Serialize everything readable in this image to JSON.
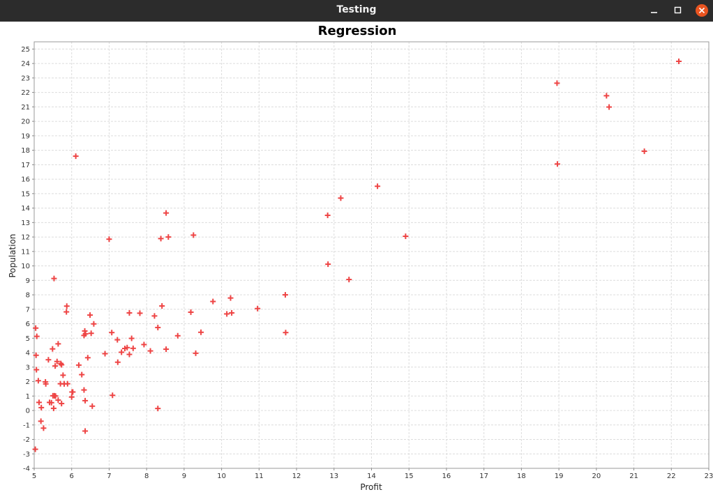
{
  "window": {
    "title": "Testing",
    "controls": [
      "minimize",
      "maximize",
      "close"
    ],
    "close_color": "#e95420"
  },
  "chart_data": {
    "type": "scatter",
    "title": "Regression",
    "xlabel": "Profit",
    "ylabel": "Population",
    "xlim": [
      5,
      23
    ],
    "ylim": [
      -4,
      25.5
    ],
    "xticks": [
      5,
      6,
      7,
      8,
      9,
      10,
      11,
      12,
      13,
      14,
      15,
      16,
      17,
      18,
      19,
      20,
      21,
      22,
      23
    ],
    "yticks": [
      -4,
      -3,
      -2,
      -1,
      0,
      1,
      2,
      3,
      4,
      5,
      6,
      7,
      8,
      9,
      10,
      11,
      12,
      13,
      14,
      15,
      16,
      17,
      18,
      19,
      20,
      21,
      22,
      23,
      24,
      25
    ],
    "grid": true,
    "marker": "plus",
    "marker_color": "#ee4444",
    "points": [
      [
        6.11,
        17.59
      ],
      [
        5.53,
        9.13
      ],
      [
        8.52,
        13.66
      ],
      [
        7.0,
        11.85
      ],
      [
        5.86,
        6.82
      ],
      [
        8.38,
        11.89
      ],
      [
        7.48,
        4.35
      ],
      [
        8.58,
        12.0
      ],
      [
        6.49,
        6.6
      ],
      [
        5.05,
        3.82
      ],
      [
        5.71,
        3.25
      ],
      [
        14.16,
        15.51
      ],
      [
        5.73,
        3.16
      ],
      [
        8.41,
        7.23
      ],
      [
        5.64,
        0.72
      ],
      [
        5.38,
        3.51
      ],
      [
        6.37,
        5.3
      ],
      [
        5.13,
        0.56
      ],
      [
        6.43,
        3.65
      ],
      [
        7.07,
        5.39
      ],
      [
        6.19,
        3.14
      ],
      [
        20.27,
        21.77
      ],
      [
        5.49,
        4.26
      ],
      [
        6.33,
        5.19
      ],
      [
        5.56,
        3.08
      ],
      [
        18.95,
        22.64
      ],
      [
        12.83,
        13.5
      ],
      [
        10.96,
        7.05
      ],
      [
        13.18,
        14.69
      ],
      [
        22.2,
        24.15
      ],
      [
        5.25,
        -1.22
      ],
      [
        6.59,
        5.99
      ],
      [
        9.25,
        12.13
      ],
      [
        5.89,
        1.85
      ],
      [
        8.21,
        6.54
      ],
      [
        7.93,
        4.56
      ],
      [
        8.1,
        4.12
      ],
      [
        5.61,
        3.39
      ],
      [
        12.84,
        10.12
      ],
      [
        6.35,
        5.5
      ],
      [
        5.41,
        0.56
      ],
      [
        6.89,
        3.93
      ],
      [
        11.71,
        5.39
      ],
      [
        5.77,
        2.44
      ],
      [
        7.82,
        6.73
      ],
      [
        7.09,
        1.05
      ],
      [
        5.07,
        5.13
      ],
      [
        5.8,
        1.84
      ],
      [
        11.7,
        8.0
      ],
      [
        5.54,
        1.02
      ],
      [
        7.54,
        6.75
      ],
      [
        5.31,
        1.84
      ],
      [
        7.42,
        4.29
      ],
      [
        7.6,
        4.99
      ],
      [
        6.03,
        1.28
      ],
      [
        6.33,
        1.42
      ],
      [
        6.36,
        -1.42
      ],
      [
        6.27,
        2.48
      ],
      [
        5.64,
        4.61
      ],
      [
        9.31,
        3.96
      ],
      [
        9.45,
        5.41
      ],
      [
        8.83,
        5.17
      ],
      [
        5.18,
        -0.74
      ],
      [
        21.28,
        17.93
      ],
      [
        14.91,
        12.05
      ],
      [
        18.96,
        17.05
      ],
      [
        7.22,
        4.89
      ],
      [
        8.3,
        5.74
      ],
      [
        10.24,
        7.78
      ],
      [
        5.5,
        1.02
      ],
      [
        20.34,
        20.99
      ],
      [
        10.14,
        6.68
      ],
      [
        7.33,
        4.03
      ],
      [
        6.01,
        1.28
      ],
      [
        7.23,
        3.34
      ],
      [
        5.03,
        -2.68
      ],
      [
        6.55,
        0.3
      ],
      [
        7.54,
        3.88
      ],
      [
        5.04,
        5.7
      ],
      [
        10.27,
        6.75
      ],
      [
        5.11,
        2.06
      ],
      [
        5.73,
        0.48
      ],
      [
        5.19,
        0.2
      ],
      [
        6.36,
        0.68
      ],
      [
        9.77,
        7.54
      ],
      [
        6.52,
        5.34
      ],
      [
        8.52,
        4.24
      ],
      [
        9.18,
        6.8
      ],
      [
        6.0,
        0.93
      ],
      [
        5.52,
        0.15
      ],
      [
        5.06,
        2.82
      ],
      [
        5.7,
        1.85
      ],
      [
        13.4,
        9.06
      ],
      [
        5.3,
        1.98
      ],
      [
        5.87,
        7.22
      ],
      [
        8.3,
        0.14
      ],
      [
        7.64,
        4.3
      ],
      [
        5.46,
        0.54
      ],
      [
        5.57,
        1.0
      ],
      [
        5.8,
        1.85
      ]
    ]
  }
}
